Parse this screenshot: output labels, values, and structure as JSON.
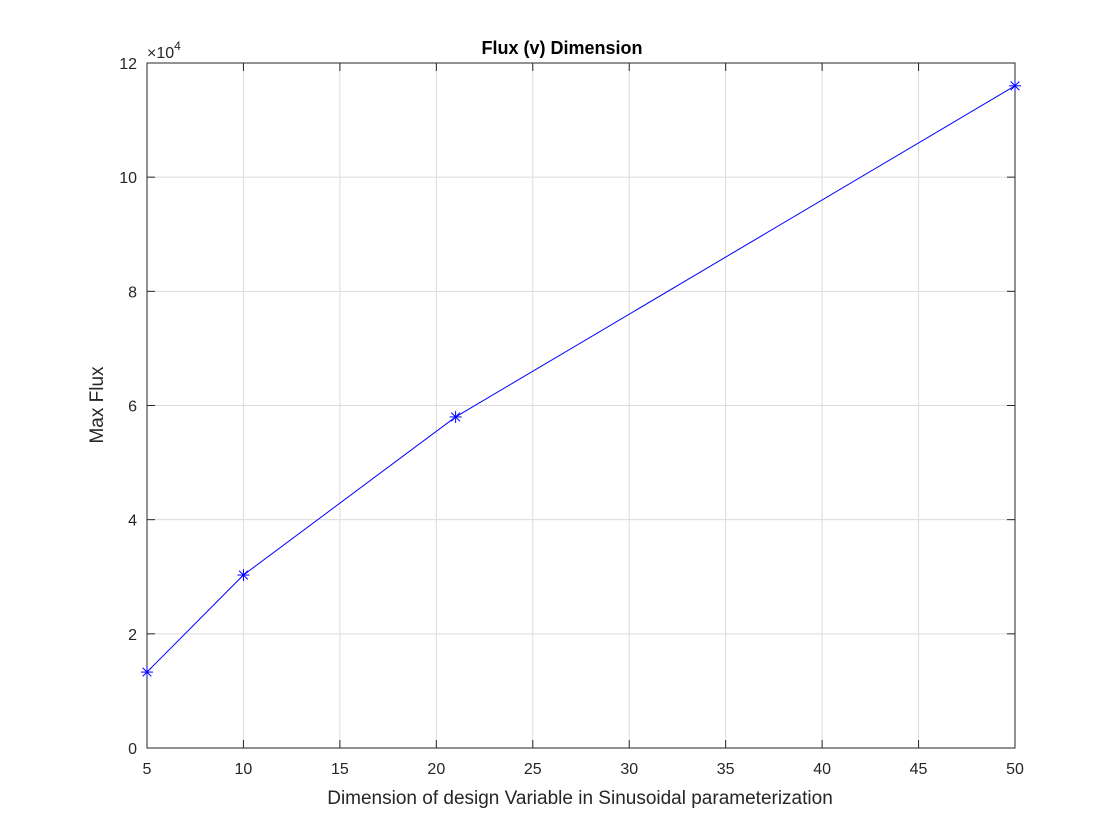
{
  "chart_data": {
    "type": "line",
    "title": "Flux (v) Dimension",
    "xlabel": "Dimension of design Variable in Sinusoidal parameterization",
    "ylabel": "Max Flux",
    "y_exponent_base": "×10",
    "y_exponent_power": "4",
    "xlim": [
      5,
      50
    ],
    "ylim": [
      0,
      12
    ],
    "xticks": [
      5,
      10,
      15,
      20,
      25,
      30,
      35,
      40,
      45,
      50
    ],
    "yticks": [
      0,
      2,
      4,
      6,
      8,
      10,
      12
    ],
    "grid": true,
    "marker": "asterisk",
    "series": [
      {
        "x": [
          5,
          10,
          21,
          50
        ],
        "y": [
          1.33,
          3.03,
          5.8,
          11.6
        ],
        "color": "#0000ff"
      }
    ]
  }
}
